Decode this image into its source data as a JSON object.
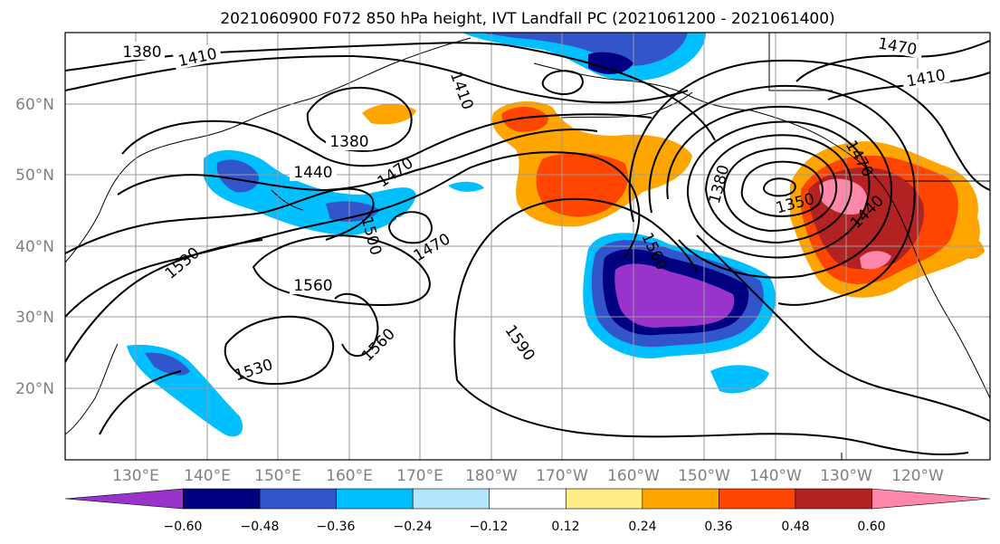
{
  "title": "2021060900 F072 850 hPa height, IVT Landfall PC (2021061200 - 2021061400)",
  "lat_labels": [
    "60°N",
    "50°N",
    "40°N",
    "30°N",
    "20°N"
  ],
  "lon_labels": [
    "130°E",
    "140°E",
    "150°E",
    "160°E",
    "170°E",
    "180°W",
    "170°W",
    "160°W",
    "150°W",
    "140°W",
    "130°W",
    "120°W"
  ],
  "contour_labels": [
    "1380",
    "1410",
    "1410",
    "1470",
    "1410",
    "1380",
    "1440",
    "1470",
    "1530",
    "1500",
    "1470",
    "1560",
    "1560",
    "1530",
    "1560",
    "1590",
    "1380",
    "1350",
    "1440",
    "1470",
    "1410",
    "1470"
  ],
  "colorbar": {
    "colors": [
      "#9933cc",
      "#000080",
      "#3355cc",
      "#00bfff",
      "#b3e5fc",
      "#ffffff",
      "#ffee88",
      "#ffa500",
      "#ff4500",
      "#b22222",
      "#ff88aa"
    ],
    "ticks": [
      "−0.60",
      "−0.48",
      "−0.36",
      "−0.24",
      "−0.12",
      "0.12",
      "0.24",
      "0.36",
      "0.48",
      "0.60"
    ]
  }
}
